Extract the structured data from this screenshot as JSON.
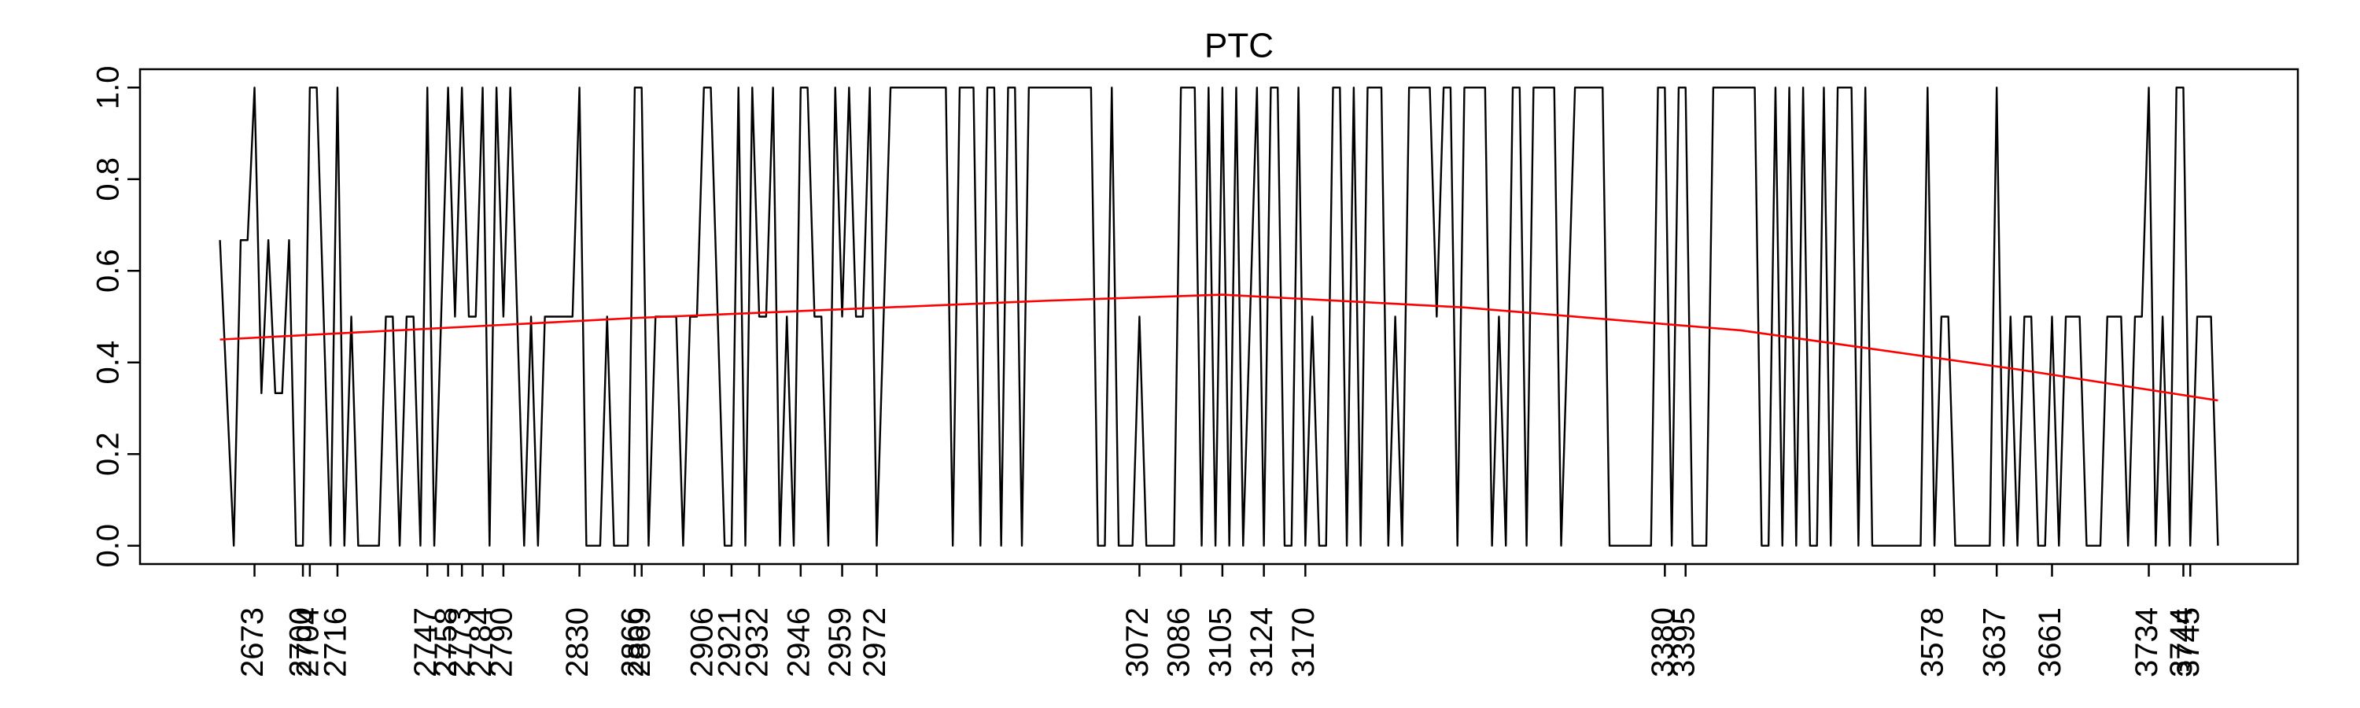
{
  "chart_data": {
    "type": "line",
    "title": "PTC",
    "categories": [
      null,
      null,
      null,
      null,
      null,
      "2673",
      null,
      null,
      null,
      null,
      null,
      null,
      "2700",
      "2704",
      null,
      null,
      null,
      "2716",
      null,
      null,
      null,
      null,
      null,
      null,
      null,
      null,
      null,
      null,
      null,
      null,
      "2747",
      null,
      null,
      "2758",
      null,
      "2773",
      null,
      null,
      "2784",
      null,
      null,
      "2790",
      null,
      null,
      null,
      null,
      null,
      null,
      null,
      null,
      null,
      null,
      "2830",
      null,
      null,
      null,
      null,
      null,
      null,
      null,
      "2866",
      "2869",
      null,
      null,
      null,
      null,
      null,
      null,
      null,
      null,
      "2906",
      null,
      null,
      null,
      "2921",
      null,
      null,
      null,
      "2932",
      null,
      null,
      null,
      null,
      null,
      "2946",
      null,
      null,
      null,
      null,
      null,
      "2959",
      null,
      null,
      null,
      null,
      "2972",
      null,
      null,
      null,
      null,
      null,
      null,
      null,
      null,
      null,
      null,
      null,
      null,
      null,
      null,
      null,
      null,
      null,
      null,
      null,
      null,
      null,
      null,
      null,
      null,
      null,
      null,
      null,
      null,
      null,
      null,
      null,
      null,
      null,
      null,
      null,
      null,
      null,
      "3072",
      null,
      null,
      null,
      null,
      null,
      "3086",
      null,
      null,
      null,
      null,
      null,
      "3105",
      null,
      null,
      null,
      null,
      null,
      "3124",
      null,
      null,
      null,
      null,
      null,
      "3170",
      null,
      null,
      null,
      null,
      null,
      null,
      null,
      null,
      null,
      null,
      null,
      null,
      null,
      null,
      null,
      null,
      null,
      null,
      null,
      null,
      null,
      null,
      null,
      null,
      null,
      null,
      null,
      null,
      null,
      null,
      null,
      null,
      null,
      null,
      null,
      null,
      null,
      null,
      null,
      null,
      null,
      null,
      null,
      null,
      null,
      null,
      null,
      null,
      null,
      null,
      null,
      "3380",
      null,
      null,
      "3395",
      null,
      null,
      null,
      null,
      null,
      null,
      null,
      null,
      null,
      null,
      null,
      null,
      null,
      null,
      null,
      null,
      null,
      null,
      null,
      null,
      null,
      null,
      null,
      null,
      null,
      null,
      null,
      null,
      null,
      null,
      null,
      null,
      null,
      null,
      null,
      "3578",
      null,
      null,
      null,
      null,
      null,
      null,
      null,
      null,
      "3637",
      null,
      null,
      null,
      null,
      null,
      null,
      null,
      "3661",
      null,
      null,
      null,
      null,
      null,
      null,
      null,
      null,
      null,
      null,
      null,
      null,
      null,
      "3734",
      null,
      null,
      null,
      null,
      "3744",
      "3745",
      null,
      null,
      null,
      null
    ],
    "series": [
      {
        "color": "#000000",
        "values": [
          0.667,
          0.333,
          0,
          0.667,
          0.667,
          1,
          0.333,
          0.667,
          0.333,
          0.333,
          0.667,
          0,
          0,
          1,
          1,
          0.5,
          0,
          1,
          0,
          0.5,
          0,
          0,
          0,
          0,
          0.5,
          0.5,
          0,
          0.5,
          0.5,
          0,
          1,
          0,
          0.5,
          1,
          0.5,
          1,
          0.5,
          0.5,
          1,
          0,
          1,
          0.5,
          1,
          0.5,
          0,
          0.5,
          0,
          0.5,
          0.5,
          0.5,
          0.5,
          0.5,
          1,
          0,
          0,
          0,
          0.5,
          0,
          0,
          0,
          1,
          1,
          0,
          0.5,
          0.5,
          0.5,
          0.5,
          0,
          0.5,
          0.5,
          1,
          1,
          0.5,
          0,
          0,
          1,
          0,
          1,
          0.5,
          0.5,
          1,
          0,
          0.5,
          0,
          1,
          1,
          0.5,
          0.5,
          0,
          1,
          0.5,
          1,
          0.5,
          0.5,
          1,
          0,
          0.5,
          1,
          1,
          1,
          1,
          1,
          1,
          1,
          1,
          1,
          0,
          1,
          1,
          1,
          0,
          1,
          1,
          0,
          1,
          1,
          0,
          1,
          1,
          1,
          1,
          1,
          1,
          1,
          1,
          1,
          1,
          0,
          0,
          1,
          0,
          0,
          0,
          0.5,
          0,
          0,
          0,
          0,
          0,
          1,
          1,
          1,
          0,
          1,
          0,
          1,
          0,
          1,
          0,
          0.5,
          1,
          0,
          1,
          1,
          0,
          0,
          1,
          0,
          0.5,
          0,
          0,
          1,
          1,
          0,
          1,
          0,
          1,
          1,
          1,
          0,
          0.5,
          0,
          1,
          1,
          1,
          1,
          0.5,
          1,
          1,
          0,
          1,
          1,
          1,
          1,
          0,
          0.5,
          0,
          1,
          1,
          0,
          1,
          1,
          1,
          1,
          0,
          0.5,
          1,
          1,
          1,
          1,
          1,
          0,
          0,
          0,
          0,
          0,
          0,
          0,
          1,
          1,
          0,
          1,
          1,
          0,
          0,
          0,
          1,
          1,
          1,
          1,
          1,
          1,
          1,
          0,
          0,
          1,
          0,
          1,
          0,
          1,
          0,
          0,
          1,
          0,
          1,
          1,
          1,
          0,
          1,
          0,
          0,
          0,
          0,
          0,
          0,
          0,
          0,
          1,
          0,
          0.5,
          0.5,
          0,
          0,
          0,
          0,
          0,
          0,
          1,
          0,
          0.5,
          0,
          0.5,
          0.5,
          0,
          0,
          0.5,
          0,
          0.5,
          0.5,
          0.5,
          0,
          0,
          0,
          0.5,
          0.5,
          0.5,
          0,
          0.5,
          0.5,
          1,
          0,
          0.5,
          0,
          1,
          1,
          0,
          0.5,
          0.5,
          0.5,
          0
        ]
      }
    ],
    "trend": {
      "color": "#ff0000",
      "x": [
        0,
        60,
        120,
        145,
        180,
        220,
        260,
        289
      ],
      "values": [
        0.45,
        0.497,
        0.535,
        0.548,
        0.52,
        0.47,
        0.385,
        0.317
      ]
    },
    "ylim": [
      -0.04,
      1.04
    ],
    "yticks": [
      {
        "value": 0,
        "label": "0.0"
      },
      {
        "value": 0.2,
        "label": "0.2"
      },
      {
        "value": 0.4,
        "label": "0.4"
      },
      {
        "value": 0.6,
        "label": "0.6"
      },
      {
        "value": 0.8,
        "label": "0.8"
      },
      {
        "value": 1,
        "label": "1.0"
      }
    ]
  }
}
